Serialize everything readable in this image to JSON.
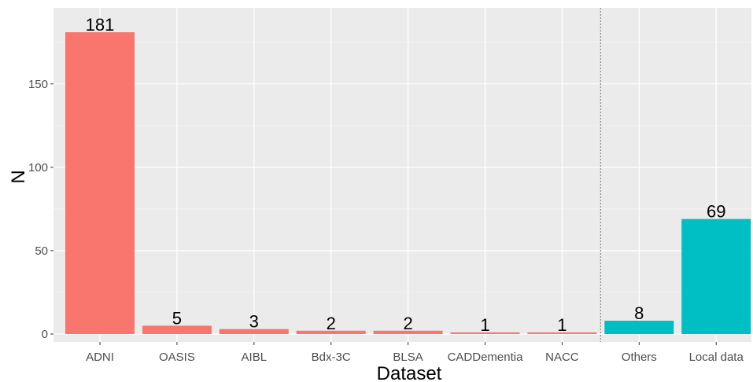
{
  "chart_data": {
    "type": "bar",
    "categories": [
      "ADNI",
      "OASIS",
      "AIBL",
      "Bdx-3C",
      "BLSA",
      "CADDementia",
      "NACC",
      "Others",
      "Local data"
    ],
    "values": [
      181,
      5,
      3,
      2,
      2,
      1,
      1,
      8,
      69
    ],
    "data_labels": [
      "181",
      "5",
      "3",
      "2",
      "2",
      "1",
      "1",
      "8",
      "69"
    ],
    "bar_colors": [
      "#F8766D",
      "#F8766D",
      "#F8766D",
      "#F8766D",
      "#F8766D",
      "#F8766D",
      "#F8766D",
      "#00BFC4",
      "#00BFC4"
    ],
    "title": "",
    "xlabel": "Dataset",
    "ylabel": "N",
    "ylim": [
      0,
      187
    ],
    "yticks": [
      0,
      50,
      100,
      150
    ],
    "ytick_labels": [
      "0",
      "50",
      "100",
      "150"
    ],
    "grid": true,
    "separator_after_category": "NACC",
    "panel_background": "#EBEBEB",
    "legend": "none"
  }
}
